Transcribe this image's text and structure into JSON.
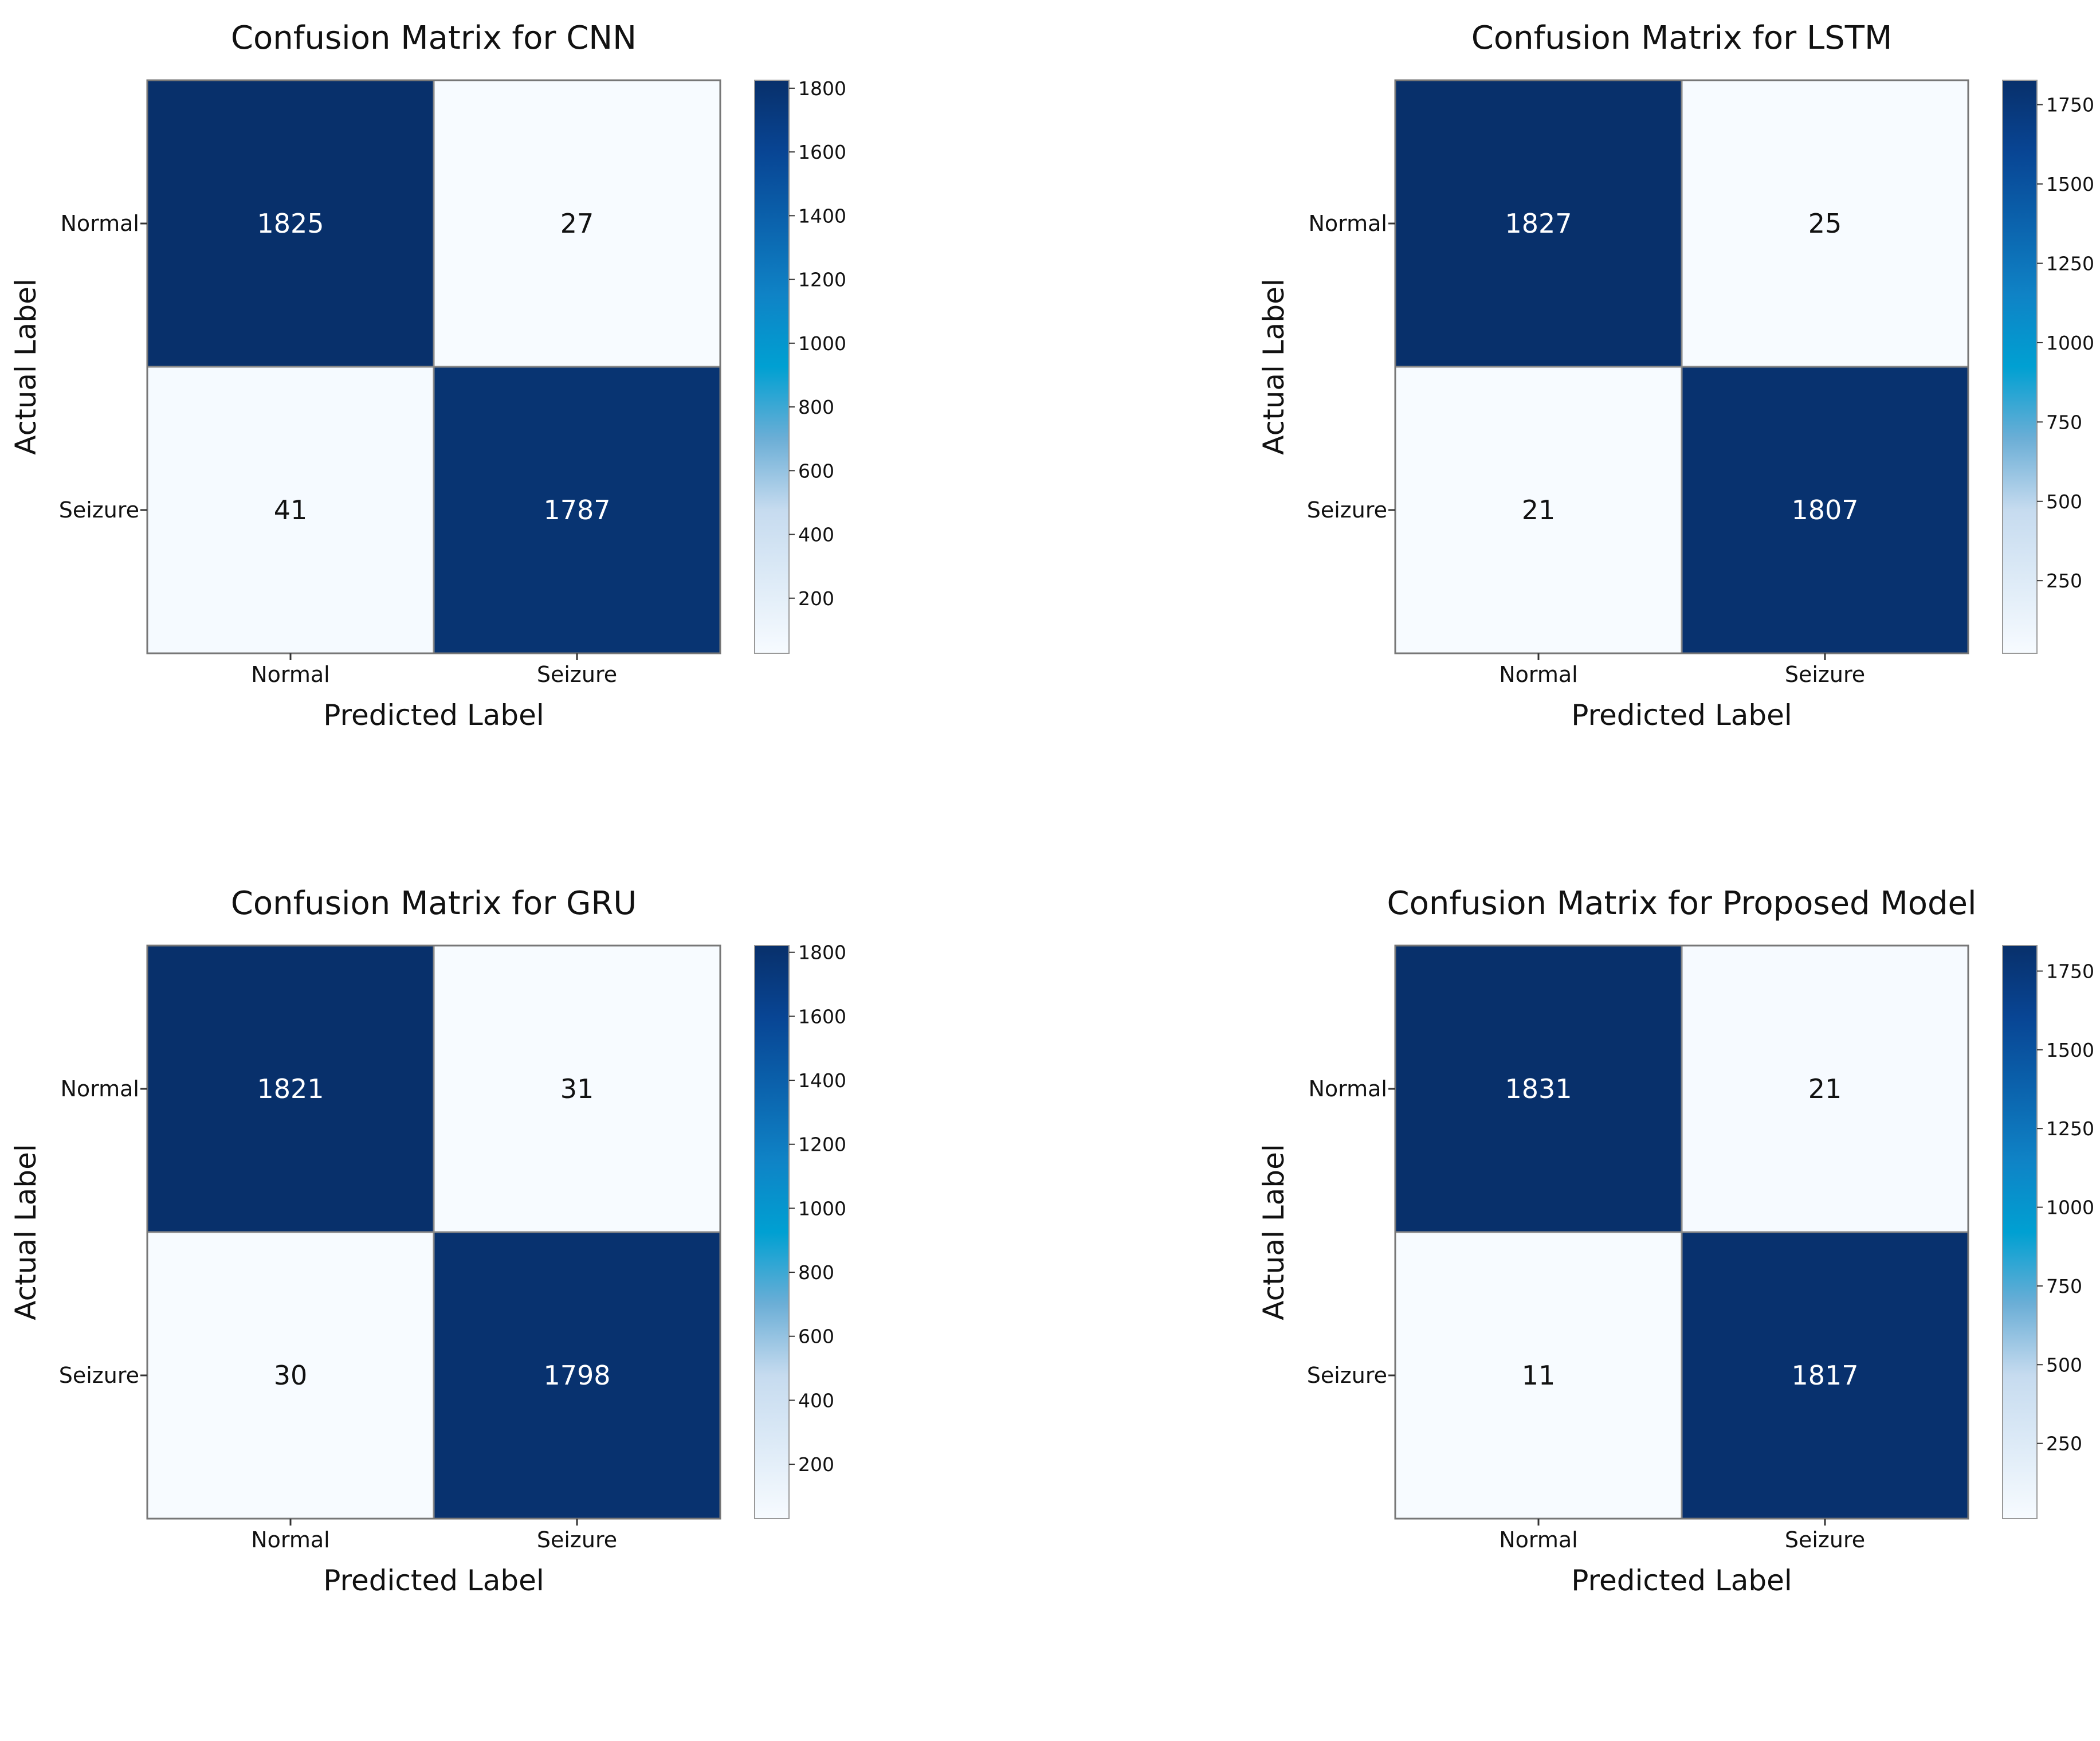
{
  "chart_data": [
    {
      "type": "heatmap",
      "title": "Confusion Matrix for CNN",
      "xlabel": "Predicted Label",
      "ylabel": "Actual Label",
      "x_categories": [
        "Normal",
        "Seizure"
      ],
      "y_categories": [
        "Normal",
        "Seizure"
      ],
      "values": [
        [
          1825,
          27
        ],
        [
          41,
          1787
        ]
      ],
      "colormap": "Blues",
      "colorbar": {
        "range": [
          27,
          1825
        ],
        "ticks": [
          200,
          400,
          600,
          800,
          1000,
          1200,
          1400,
          1600,
          1800
        ]
      }
    },
    {
      "type": "heatmap",
      "title": "Confusion Matrix for LSTM",
      "xlabel": "Predicted Label",
      "ylabel": "Actual Label",
      "x_categories": [
        "Normal",
        "Seizure"
      ],
      "y_categories": [
        "Normal",
        "Seizure"
      ],
      "values": [
        [
          1827,
          25
        ],
        [
          21,
          1807
        ]
      ],
      "colormap": "Blues",
      "colorbar": {
        "range": [
          21,
          1827
        ],
        "ticks": [
          250,
          500,
          750,
          1000,
          1250,
          1500,
          1750
        ]
      }
    },
    {
      "type": "heatmap",
      "title": "Confusion Matrix for GRU",
      "xlabel": "Predicted Label",
      "ylabel": "Actual Label",
      "x_categories": [
        "Normal",
        "Seizure"
      ],
      "y_categories": [
        "Normal",
        "Seizure"
      ],
      "values": [
        [
          1821,
          31
        ],
        [
          30,
          1798
        ]
      ],
      "colormap": "Blues",
      "colorbar": {
        "range": [
          30,
          1821
        ],
        "ticks": [
          200,
          400,
          600,
          800,
          1000,
          1200,
          1400,
          1600,
          1800
        ]
      }
    },
    {
      "type": "heatmap",
      "title": "Confusion Matrix for Proposed Model",
      "xlabel": "Predicted Label",
      "ylabel": "Actual Label",
      "x_categories": [
        "Normal",
        "Seizure"
      ],
      "y_categories": [
        "Normal",
        "Seizure"
      ],
      "values": [
        [
          1831,
          21
        ],
        [
          11,
          1817
        ]
      ],
      "colormap": "Blues",
      "colorbar": {
        "range": [
          11,
          1831
        ],
        "ticks": [
          250,
          500,
          750,
          1000,
          1250,
          1500,
          1750
        ]
      }
    }
  ]
}
